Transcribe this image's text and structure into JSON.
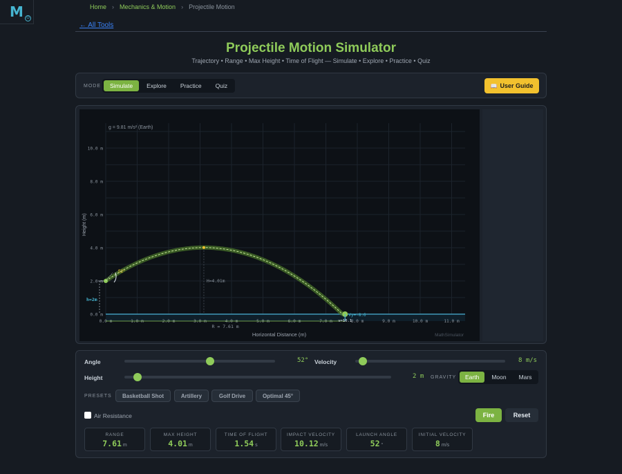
{
  "logo": {
    "letter": "M",
    "badge": "⊙"
  },
  "breadcrumb": {
    "home": "Home",
    "section": "Mechanics & Motion",
    "current": "Projectile Motion",
    "sep": "›"
  },
  "all_tools": "← All Tools",
  "title": "Projectile Motion Simulator",
  "subtitle": "Trajectory • Range • Max Height • Time of Flight — Simulate • Explore • Practice • Quiz",
  "mode": {
    "label": "MODE",
    "tabs": [
      "Simulate",
      "Explore",
      "Practice",
      "Quiz"
    ],
    "active": "Simulate"
  },
  "user_guide": {
    "icon": "📖",
    "label": "User Guide"
  },
  "sim": {
    "gravity_note": "g = 9.81 m/s² (Earth)",
    "y_axis_label": "Height (m)",
    "x_axis_label": "Horizontal Distance (m)",
    "y_ticks": [
      "0.0 m",
      "2.0 m",
      "4.0 m",
      "6.0 m",
      "8.0 m",
      "10.0 m"
    ],
    "x_ticks": [
      "0.0 m",
      "1.0 m",
      "2.0 m",
      "3.0 m",
      "4.0 m",
      "5.0 m",
      "6.0 m",
      "7.0 m",
      "8.0 m",
      "9.0 m",
      "10.0 m",
      "11.0 m"
    ],
    "angle_label": "52°",
    "height_marker": "h=2m",
    "max_height_marker": "H=4.01m",
    "range_marker": "R = 7.61 m",
    "impact_label": "Vy=-8.6",
    "impact_label2": "v=10.1",
    "watermark": "MathSimulator",
    "accent": "#8fcb5a",
    "launch_x": 0,
    "launch_h": 2,
    "apex_x": 3.12,
    "apex_h": 4.01,
    "range": 7.61
  },
  "controls": {
    "angle": {
      "label": "Angle",
      "value": "52°",
      "fraction": 0.57
    },
    "velocity": {
      "label": "Velocity",
      "value": "8 m/s",
      "fraction": 0.05
    },
    "height": {
      "label": "Height",
      "value": "2 m",
      "fraction": 0.05
    },
    "gravity": {
      "label": "GRAVITY",
      "options": [
        "Earth",
        "Moon",
        "Mars"
      ],
      "active": "Earth"
    },
    "presets": {
      "label": "PRESETS",
      "items": [
        "Basketball Shot",
        "Artillery",
        "Golf Drive",
        "Optimal 45°"
      ]
    },
    "air_resistance": {
      "label": "Air Resistance",
      "checked": false
    },
    "fire": "Fire",
    "reset": "Reset"
  },
  "stats": [
    {
      "label": "RANGE",
      "value": "7.61",
      "unit": "m"
    },
    {
      "label": "MAX HEIGHT",
      "value": "4.01",
      "unit": "m"
    },
    {
      "label": "TIME OF FLIGHT",
      "value": "1.54",
      "unit": "s"
    },
    {
      "label": "IMPACT VELOCITY",
      "value": "10.12",
      "unit": "m/s"
    },
    {
      "label": "LAUNCH ANGLE",
      "value": "52",
      "unit": "°"
    },
    {
      "label": "INITIAL VELOCITY",
      "value": "8",
      "unit": "m/s"
    }
  ]
}
